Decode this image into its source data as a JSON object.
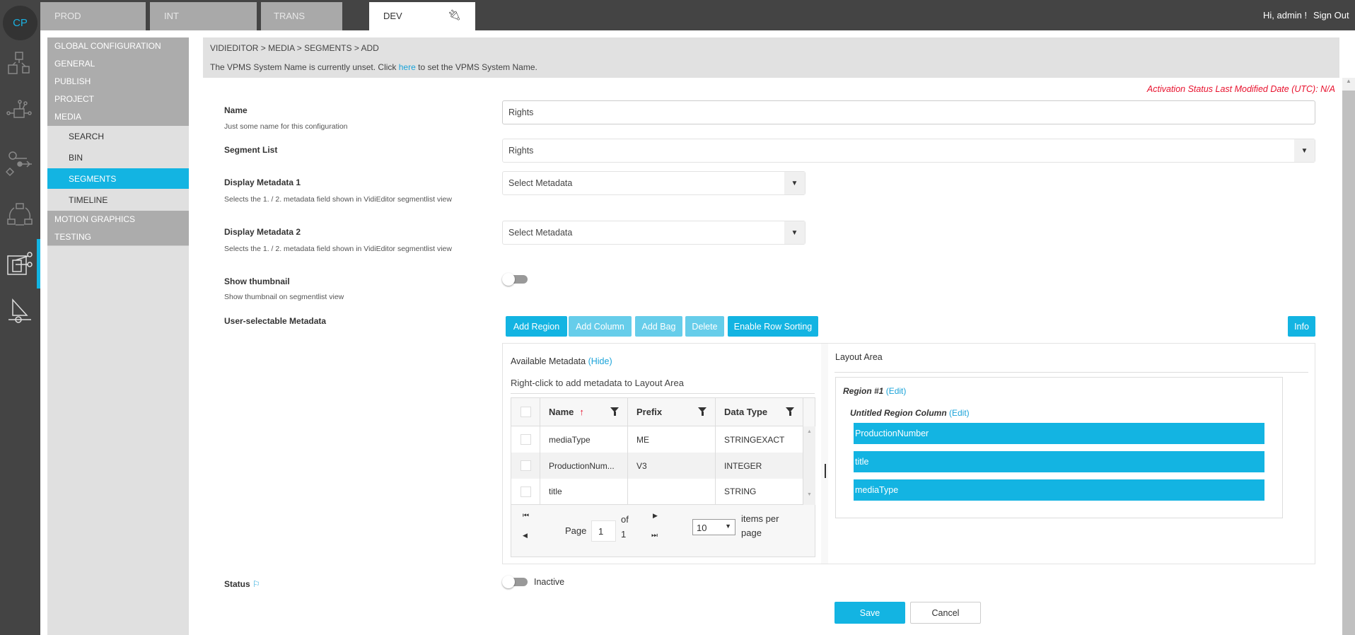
{
  "rail": {
    "logo": "CP",
    "icons": [
      "modules-icon",
      "network-icon",
      "workflow-icon",
      "cycle-icon",
      "video-editor-icon",
      "player-icon"
    ]
  },
  "tabs": [
    {
      "label": "PROD"
    },
    {
      "label": "INT"
    },
    {
      "label": "TRANS"
    },
    {
      "label": "DEV",
      "active": true,
      "icon": "plug-icon"
    }
  ],
  "user": {
    "greeting": "Hi, admin !",
    "signout": "Sign Out"
  },
  "nav": {
    "top": [
      "GLOBAL CONFIGURATION",
      "GENERAL",
      "PUBLISH",
      "PROJECT",
      "MEDIA"
    ],
    "media_sub": [
      "SEARCH",
      "BIN",
      "SEGMENTS",
      "TIMELINE"
    ],
    "active": "SEGMENTS",
    "bottom": [
      "MOTION GRAPHICS",
      "TESTING"
    ]
  },
  "breadcrumb": "VIDIEDITOR > MEDIA > SEGMENTS > ADD",
  "notice": {
    "before": "The VPMS System Name is currently unset. Click ",
    "link": "here",
    "after": " to set the VPMS System Name."
  },
  "activation": "Activation Status Last Modified Date (UTC): N/A",
  "form": {
    "name": {
      "label": "Name",
      "hint": "Just some name for this configuration",
      "value": "Rights"
    },
    "segment_list": {
      "label": "Segment List",
      "value": "Rights"
    },
    "dm1": {
      "label": "Display Metadata 1",
      "hint": "Selects the 1. / 2. metadata field shown in VidiEditor segmentlist view",
      "value": "Select Metadata"
    },
    "dm2": {
      "label": "Display Metadata 2",
      "hint": "Selects the 1. / 2. metadata field shown in VidiEditor segmentlist view",
      "value": "Select Metadata"
    },
    "thumb": {
      "label": "Show thumbnail",
      "hint": "Show thumbnail on segmentlist view",
      "on": false
    },
    "usm": {
      "label": "User-selectable Metadata"
    },
    "status": {
      "label": "Status",
      "value": "Inactive",
      "on": false
    }
  },
  "buttons": {
    "add_region": "Add Region",
    "add_column": "Add Column",
    "add_bag": "Add Bag",
    "delete": "Delete",
    "row_sort": "Enable Row Sorting",
    "info": "Info",
    "save": "Save",
    "cancel": "Cancel"
  },
  "available": {
    "title": "Available Metadata",
    "hide": "(Hide)",
    "hint": "Right-click to add metadata to Layout Area",
    "columns": [
      "Name",
      "Prefix",
      "Data Type"
    ],
    "rows": [
      {
        "name": "mediaType",
        "prefix": "ME",
        "type": "STRINGEXACT"
      },
      {
        "name": "ProductionNum...",
        "prefix": "V3",
        "type": "INTEGER"
      },
      {
        "name": "title",
        "prefix": "",
        "type": "STRING"
      }
    ],
    "pager": {
      "page_label": "Page",
      "page": "1",
      "of": "of",
      "total": "1",
      "per_page": "10",
      "per_page_label": "items per page"
    }
  },
  "layout": {
    "title": "Layout Area",
    "region": "Region #1",
    "region_edit": "(Edit)",
    "column": "Untitled Region Column",
    "column_edit": "(Edit)",
    "items": [
      "ProductionNumber",
      "title",
      "mediaType"
    ]
  }
}
